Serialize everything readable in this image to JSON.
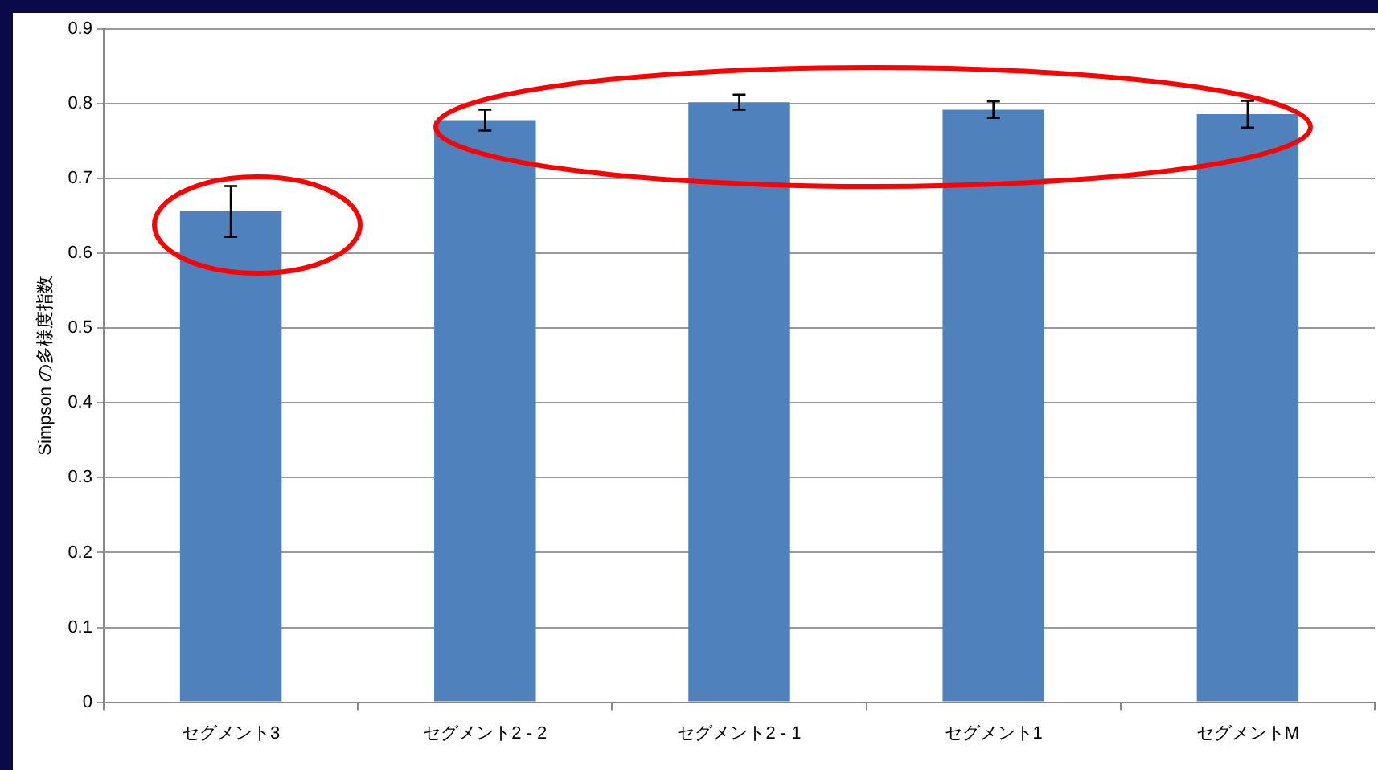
{
  "chart_data": {
    "type": "bar",
    "ylabel": "Simpson の多様度指数",
    "categories": [
      "セグメント3",
      "セグメント2 - 2",
      "セグメント2 - 1",
      "セグメント1",
      "セグメントM"
    ],
    "values": [
      0.656,
      0.778,
      0.802,
      0.792,
      0.786
    ],
    "errors": [
      0.034,
      0.014,
      0.01,
      0.011,
      0.018
    ],
    "color": "#4f81bd",
    "ylim": [
      0,
      0.9
    ],
    "yticks": [
      0,
      0.1,
      0.2,
      0.3,
      0.4,
      0.5,
      0.6,
      0.7,
      0.8,
      0.9
    ],
    "grid": "y",
    "legend": false
  }
}
